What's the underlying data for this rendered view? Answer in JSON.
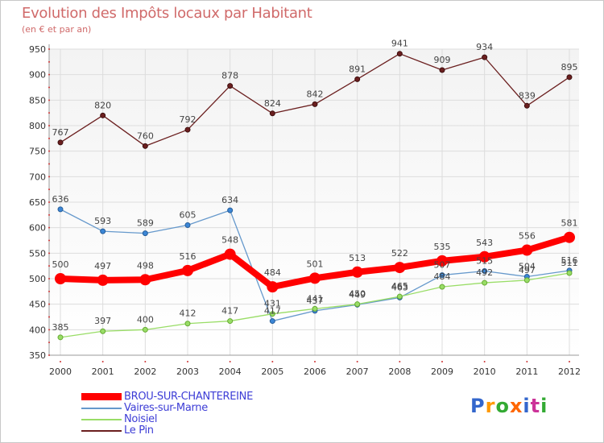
{
  "chart_data": {
    "type": "line",
    "title": "Evolution des Impôts locaux par Habitant",
    "subtitle": "(en € et par an)",
    "categories": [
      "2000",
      "2001",
      "2002",
      "2003",
      "2004",
      "2005",
      "2006",
      "2007",
      "2008",
      "2009",
      "2010",
      "2011",
      "2012"
    ],
    "ylim": [
      350,
      950
    ],
    "yticks": [
      350,
      400,
      450,
      500,
      550,
      600,
      650,
      700,
      750,
      800,
      850,
      900,
      950
    ],
    "grid": true,
    "legend_position": "bottom-left",
    "series": [
      {
        "name": "BROU-SUR-CHANTEREINE",
        "color": "#ff0000",
        "values": [
          500,
          497,
          498,
          516,
          548,
          484,
          501,
          513,
          522,
          535,
          543,
          556,
          581
        ]
      },
      {
        "name": "Vaires-sur-Marne",
        "color": "#6699cc",
        "values": [
          636,
          593,
          589,
          605,
          634,
          417,
          437,
          449,
          463,
          507,
          515,
          504,
          516
        ]
      },
      {
        "name": "Noisiel",
        "color": "#99dd66",
        "values": [
          385,
          397,
          400,
          412,
          417,
          431,
          441,
          450,
          465,
          484,
          492,
          497,
          511
        ]
      },
      {
        "name": "Le Pin",
        "color": "#6b1f1f",
        "values": [
          767,
          820,
          760,
          792,
          878,
          824,
          842,
          891,
          941,
          909,
          934,
          839,
          895
        ]
      }
    ]
  },
  "brand": {
    "text": "Proxiti",
    "letter_colors": [
      "#3366cc",
      "#ff9900",
      "#33aa33",
      "#ff6600",
      "#3366cc",
      "#cc3399",
      "#33aa33"
    ]
  }
}
